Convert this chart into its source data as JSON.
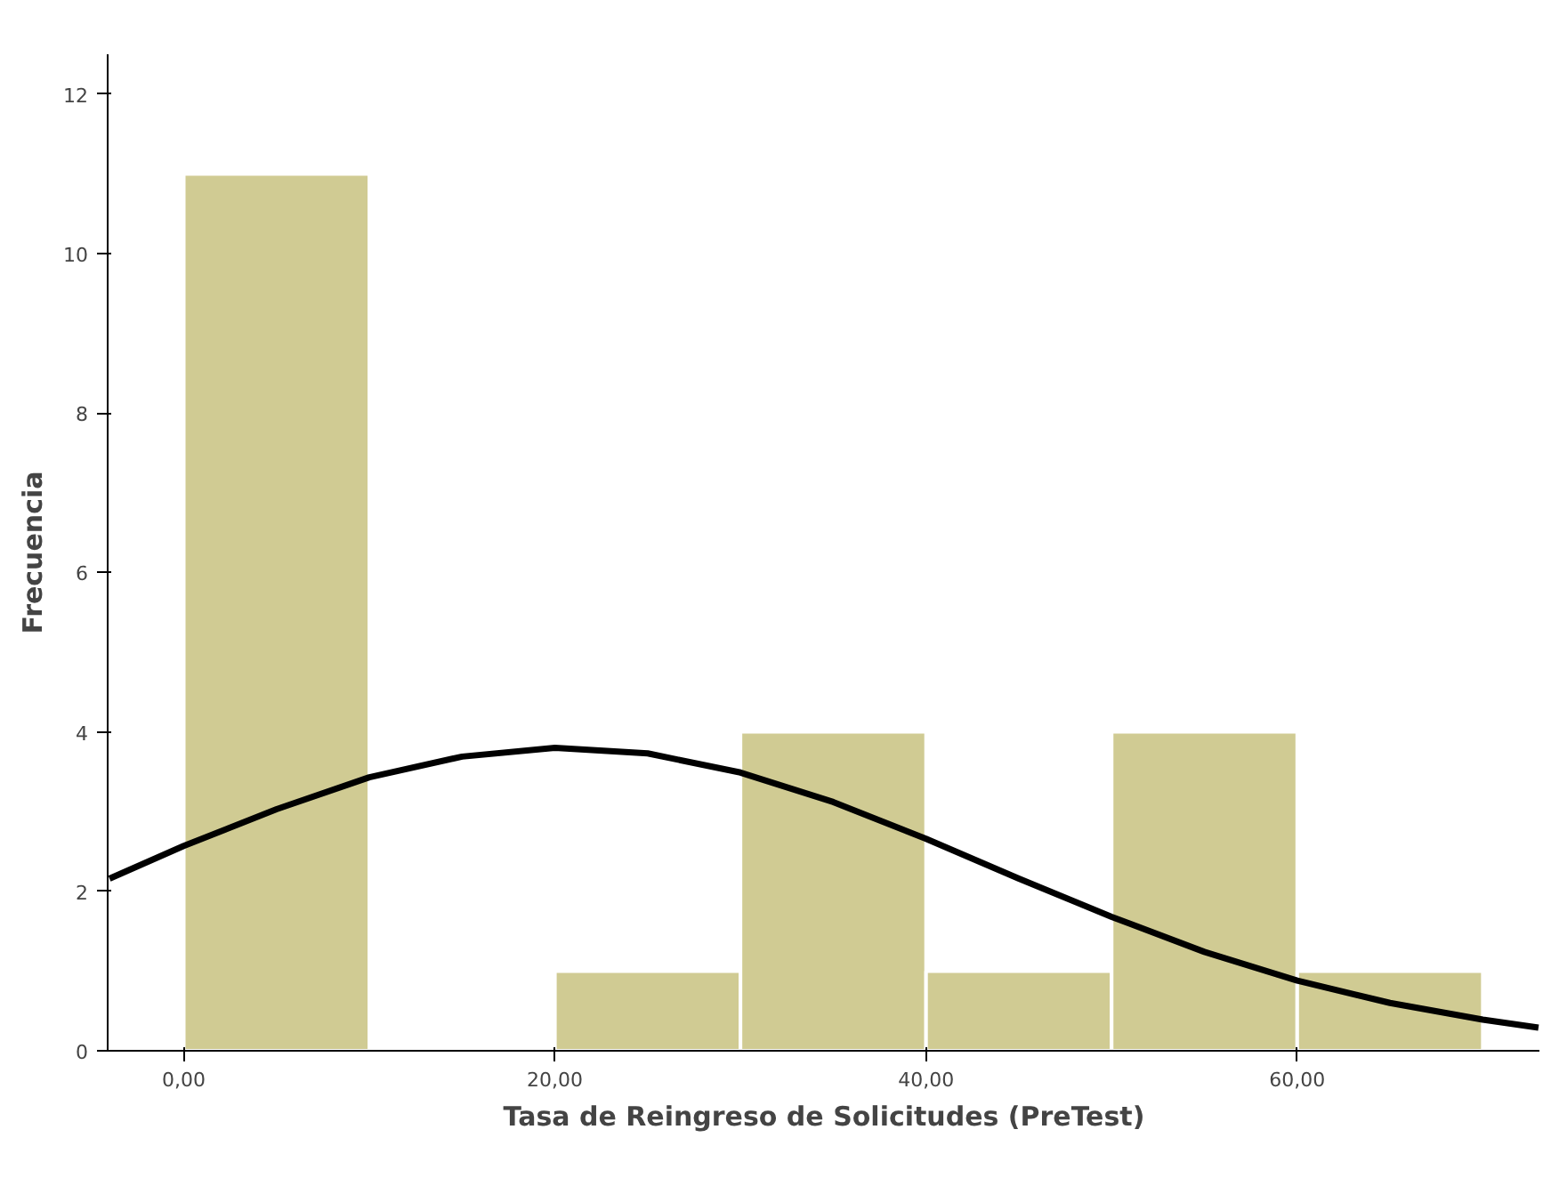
{
  "chart_data": {
    "type": "histogram",
    "xlabel": "Tasa de Reingreso de Solicitudes (PreTest)",
    "ylabel": "Frecuencia",
    "bins": [
      0,
      10,
      20,
      30,
      40,
      50,
      60,
      70
    ],
    "values": [
      11,
      0,
      1,
      4,
      1,
      4,
      1
    ],
    "color": "#d0cb93",
    "series": [
      {
        "type": "line",
        "color": "#000000",
        "x": [
          -4,
          0,
          5,
          10,
          15,
          20,
          25,
          30,
          35,
          40,
          45,
          50,
          55,
          60,
          65,
          70,
          73
        ],
        "values": [
          2.16,
          2.57,
          3.03,
          3.43,
          3.69,
          3.8,
          3.73,
          3.49,
          3.12,
          2.66,
          2.16,
          1.68,
          1.24,
          0.88,
          0.6,
          0.39,
          0.29
        ]
      }
    ],
    "xlim": [
      -4.1,
      73.1
    ],
    "ylim": [
      0,
      12.5
    ],
    "xticks": [
      {
        "value": 0,
        "label": "0,00"
      },
      {
        "value": 20,
        "label": "20,00"
      },
      {
        "value": 40,
        "label": "40,00"
      },
      {
        "value": 60,
        "label": "60,00"
      }
    ],
    "yticks": [
      0,
      2,
      4,
      6,
      8,
      10,
      12
    ],
    "grid": false
  }
}
